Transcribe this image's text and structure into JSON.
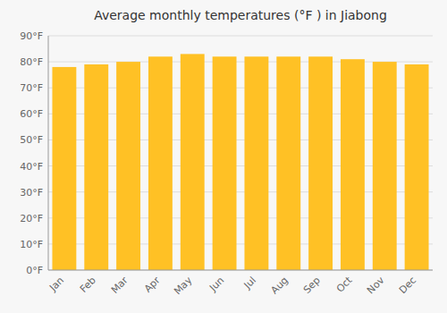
{
  "chart_data": {
    "type": "bar",
    "title": "Average monthly temperatures (°F ) in Jiabong",
    "categories": [
      "Jan",
      "Feb",
      "Mar",
      "Apr",
      "May",
      "Jun",
      "Jul",
      "Aug",
      "Sep",
      "Oct",
      "Nov",
      "Dec"
    ],
    "values": [
      78,
      79,
      80,
      82,
      83,
      82,
      82,
      82,
      82,
      81,
      80,
      79
    ],
    "color": "#FFC125",
    "ylim": [
      0,
      90
    ],
    "yticks": [
      {
        "value": 0,
        "label": "0°F"
      },
      {
        "value": 10,
        "label": "10°F"
      },
      {
        "value": 20,
        "label": "20°F"
      },
      {
        "value": 30,
        "label": "30°F"
      },
      {
        "value": 40,
        "label": "40°F"
      },
      {
        "value": 50,
        "label": "50°F"
      },
      {
        "value": 60,
        "label": "60°F"
      },
      {
        "value": 70,
        "label": "70°F"
      },
      {
        "value": 80,
        "label": "80°F"
      },
      {
        "value": 90,
        "label": "90°F"
      }
    ],
    "grid": true
  }
}
